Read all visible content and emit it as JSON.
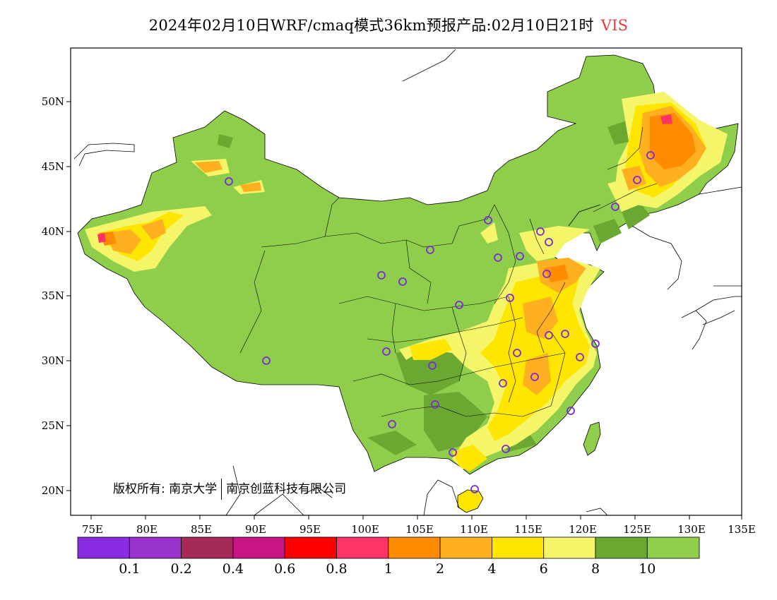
{
  "title": {
    "text": "2024年02月10日WRF/cmaq模式36km预报产品:02月10日21时",
    "variable": "VIS"
  },
  "axes": {
    "lat_ticks": [
      "50N",
      "45N",
      "40N",
      "35N",
      "30N",
      "25N",
      "20N"
    ],
    "lon_ticks": [
      "75E",
      "80E",
      "85E",
      "90E",
      "95E",
      "100E",
      "105E",
      "110E",
      "115E",
      "120E",
      "125E",
      "130E",
      "135E"
    ]
  },
  "copyright": {
    "owner": "版权所有: 南京大学",
    "company": "南京创蓝科技有限公司"
  },
  "colorbar": {
    "colors": [
      "#8a2be2",
      "#9932cc",
      "#a52a5a",
      "#c71585",
      "#ff0000",
      "#ff3366",
      "#ff8c00",
      "#ffb020",
      "#ffe600",
      "#f5f56a",
      "#6aa832",
      "#8fce4a"
    ],
    "labels": [
      "0.1",
      "0.2",
      "0.4",
      "0.6",
      "0.8",
      "1",
      "2",
      "4",
      "6",
      "8",
      "10"
    ]
  },
  "colors": {
    "land_base": "#8fce4a",
    "dark_green": "#6aa832",
    "light_yellow": "#f5f56a",
    "yellow": "#ffe600",
    "orange_light": "#ffb020",
    "orange": "#ff8c00",
    "red_pink": "#ff3366",
    "station_marker": "#7a2ad8",
    "title_variable": "#e8383a"
  }
}
